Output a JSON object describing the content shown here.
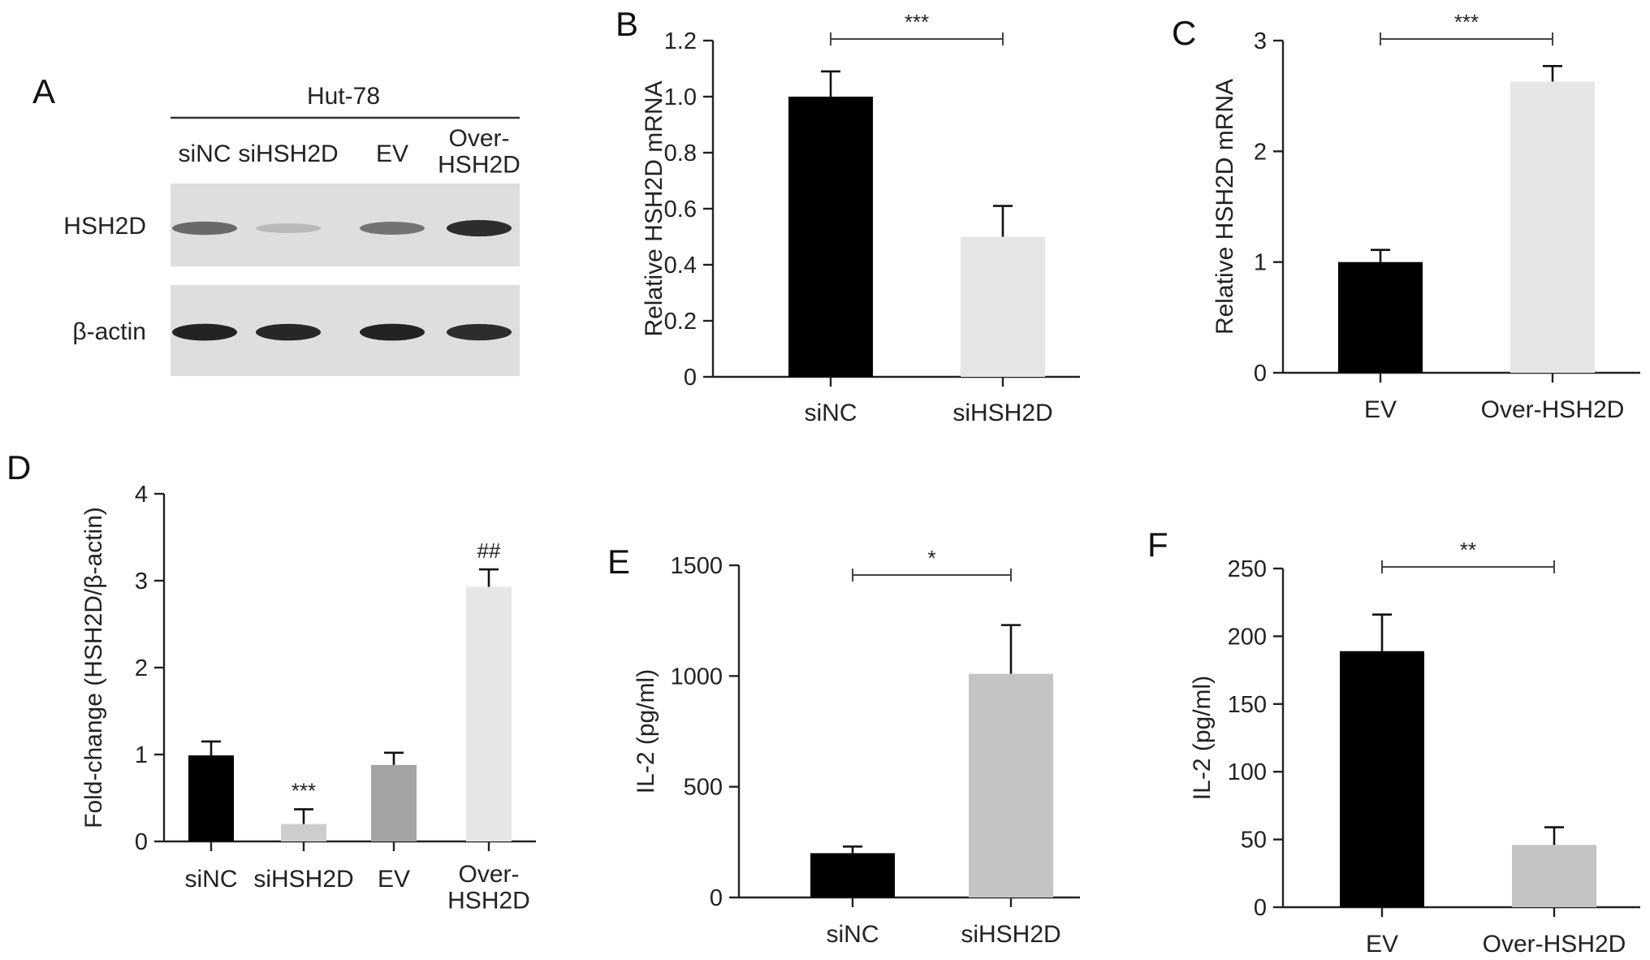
{
  "chart_data": [
    {
      "panel": "A",
      "type": "western-blot",
      "cell_line": "Hut-78",
      "lanes": [
        "siNC",
        "siHSH2D",
        "EV",
        "Over-\nHSH2D"
      ],
      "rows": [
        {
          "name": "HSH2D",
          "band_intensity": [
            0.55,
            0.15,
            0.5,
            0.85
          ]
        },
        {
          "name": "β-actin",
          "band_intensity": [
            0.9,
            0.88,
            0.9,
            0.85
          ]
        }
      ]
    },
    {
      "panel": "B",
      "type": "bar",
      "categories": [
        "siNC",
        "siHSH2D"
      ],
      "values": [
        1.0,
        0.5
      ],
      "errors": [
        0.09,
        0.11
      ],
      "colors": [
        "#000000",
        "#e6e6e6"
      ],
      "ylabel": "Relative HSH2D mRNA",
      "ylim": [
        0,
        1.2
      ],
      "yticks": [
        "0",
        "0.2",
        "0.4",
        "0.6",
        "0.8",
        "1.0",
        "1.2"
      ],
      "significance": {
        "label": "***",
        "from": 0,
        "to": 1
      }
    },
    {
      "panel": "C",
      "type": "bar",
      "categories": [
        "EV",
        "Over-HSH2D"
      ],
      "values": [
        1.0,
        2.63
      ],
      "errors": [
        0.11,
        0.14
      ],
      "colors": [
        "#000000",
        "#e6e6e6"
      ],
      "ylabel": "Relative HSH2D mRNA",
      "ylim": [
        0,
        3
      ],
      "yticks": [
        "0",
        "1",
        "2",
        "3"
      ],
      "significance": {
        "label": "***",
        "from": 0,
        "to": 1
      }
    },
    {
      "panel": "D",
      "type": "bar",
      "categories": [
        "siNC",
        "siHSH2D",
        "EV",
        "Over-\nHSH2D"
      ],
      "values": [
        0.99,
        0.2,
        0.88,
        2.93
      ],
      "errors": [
        0.16,
        0.17,
        0.14,
        0.2
      ],
      "colors": [
        "#000000",
        "#cdcdcd",
        "#a3a3a3",
        "#e6e6e6"
      ],
      "ylabel": "Fold-change (HSH2D/β-actin)",
      "ylim": [
        0,
        4
      ],
      "yticks": [
        "0",
        "1",
        "2",
        "3",
        "4"
      ],
      "bar_marks": [
        "",
        "***",
        "",
        "##"
      ]
    },
    {
      "panel": "E",
      "type": "bar",
      "categories": [
        "siNC",
        "siHSH2D"
      ],
      "values": [
        200,
        1010
      ],
      "errors": [
        30,
        220
      ],
      "colors": [
        "#000000",
        "#c4c4c4"
      ],
      "ylabel": "IL-2 (pg/ml)",
      "ylim": [
        0,
        1500
      ],
      "yticks": [
        "0",
        "500",
        "1000",
        "1500"
      ],
      "significance": {
        "label": "*",
        "from": 0,
        "to": 1
      }
    },
    {
      "panel": "F",
      "type": "bar",
      "categories": [
        "EV",
        "Over-HSH2D"
      ],
      "values": [
        189,
        46
      ],
      "errors": [
        27,
        13
      ],
      "colors": [
        "#000000",
        "#c4c4c4"
      ],
      "ylabel": "IL-2 (pg/ml)",
      "ylim": [
        0,
        250
      ],
      "yticks": [
        "0",
        "50",
        "100",
        "150",
        "200",
        "250"
      ],
      "significance": {
        "label": "**",
        "from": 0,
        "to": 1
      }
    }
  ]
}
